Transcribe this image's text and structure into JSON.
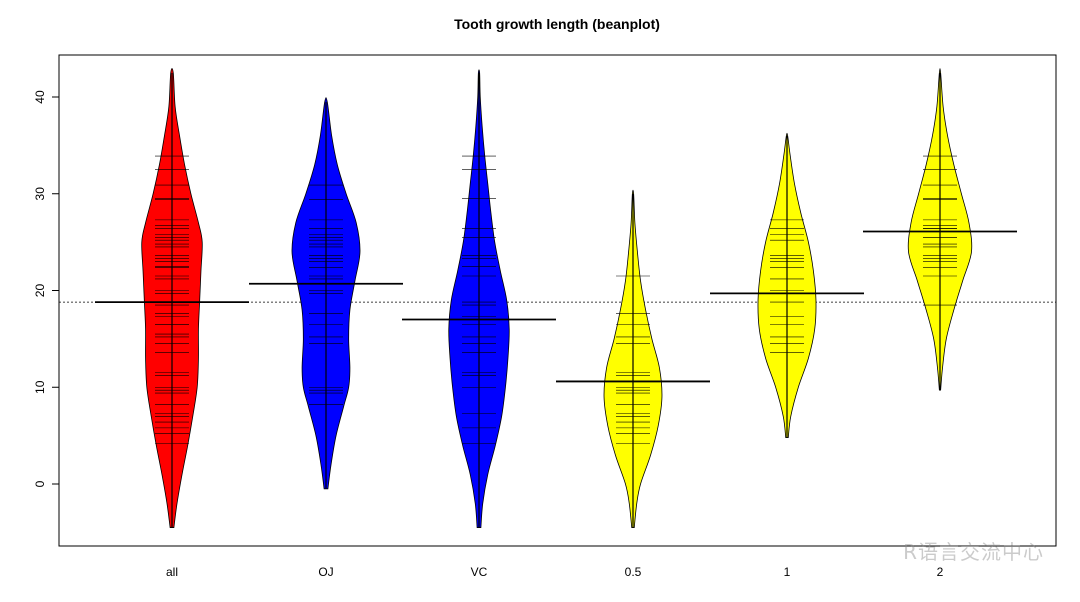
{
  "chart_data": {
    "type": "beanplot",
    "title": "Tooth growth length (beanplot)",
    "xlabel": "",
    "ylabel": "",
    "ylim": [
      -6,
      44
    ],
    "yticks": [
      0,
      10,
      20,
      30,
      40
    ],
    "overall_mean": 18.8,
    "categories": [
      "all",
      "OJ",
      "VC",
      "0.5",
      "1",
      "2"
    ],
    "beans": [
      {
        "name": "all",
        "color": "#ff0000",
        "mean": 18.8,
        "range": [
          -4.5,
          42.5
        ],
        "density": [
          [
            -4.5,
            0.03
          ],
          [
            -2,
            0.08
          ],
          [
            1,
            0.16
          ],
          [
            4,
            0.25
          ],
          [
            7,
            0.33
          ],
          [
            10,
            0.4
          ],
          [
            13,
            0.42
          ],
          [
            16,
            0.42
          ],
          [
            19,
            0.44
          ],
          [
            22,
            0.46
          ],
          [
            25,
            0.48
          ],
          [
            27,
            0.42
          ],
          [
            30,
            0.3
          ],
          [
            33,
            0.2
          ],
          [
            36,
            0.12
          ],
          [
            39,
            0.05
          ],
          [
            42.5,
            0.02
          ]
        ],
        "obs": [
          4.2,
          5.2,
          5.8,
          6.4,
          7.0,
          7.3,
          8.2,
          9.4,
          9.7,
          10.0,
          11.2,
          11.5,
          13.6,
          14.5,
          15.2,
          15.5,
          16.5,
          16.5,
          17.3,
          17.6,
          18.5,
          18.8,
          19.7,
          20.0,
          21.2,
          21.5,
          22.4,
          22.5,
          23.0,
          23.3,
          23.6,
          24.5,
          24.8,
          25.2,
          25.5,
          25.8,
          26.4,
          26.7,
          27.3,
          29.4,
          29.5,
          30.9,
          32.5,
          33.9
        ]
      },
      {
        "name": "OJ",
        "color": "#0000ff",
        "mean": 20.7,
        "range": [
          -0.5,
          39.5
        ],
        "density": [
          [
            -0.5,
            0.03
          ],
          [
            2,
            0.08
          ],
          [
            5,
            0.16
          ],
          [
            8,
            0.28
          ],
          [
            10,
            0.36
          ],
          [
            12,
            0.38
          ],
          [
            15,
            0.36
          ],
          [
            18,
            0.38
          ],
          [
            21,
            0.46
          ],
          [
            24,
            0.54
          ],
          [
            27,
            0.48
          ],
          [
            30,
            0.32
          ],
          [
            33,
            0.18
          ],
          [
            36,
            0.09
          ],
          [
            39.5,
            0.02
          ]
        ],
        "obs": [
          8.2,
          9.4,
          9.7,
          10.0,
          14.5,
          15.2,
          16.5,
          17.6,
          19.7,
          20.0,
          21.2,
          21.5,
          22.4,
          23.0,
          23.3,
          23.6,
          24.5,
          24.8,
          25.2,
          25.5,
          25.8,
          26.4,
          27.3,
          29.4,
          30.9
        ]
      },
      {
        "name": "VC",
        "color": "#0000ff",
        "mean": 17.0,
        "range": [
          -4.5,
          42.5
        ],
        "density": [
          [
            -4.5,
            0.03
          ],
          [
            -2,
            0.06
          ],
          [
            1,
            0.14
          ],
          [
            4,
            0.26
          ],
          [
            7,
            0.36
          ],
          [
            10,
            0.42
          ],
          [
            13,
            0.46
          ],
          [
            16,
            0.48
          ],
          [
            19,
            0.44
          ],
          [
            22,
            0.34
          ],
          [
            25,
            0.25
          ],
          [
            28,
            0.19
          ],
          [
            31,
            0.14
          ],
          [
            34,
            0.09
          ],
          [
            37,
            0.05
          ],
          [
            40,
            0.02
          ],
          [
            42.5,
            0.01
          ]
        ],
        "obs": [
          4.2,
          5.8,
          7.3,
          10.0,
          11.2,
          11.5,
          13.6,
          14.5,
          15.2,
          16.5,
          17.3,
          18.5,
          18.8,
          21.5,
          22.5,
          23.3,
          23.6,
          25.5,
          26.4,
          29.5,
          32.5,
          33.9
        ]
      },
      {
        "name": "0.5",
        "color": "#ffff00",
        "mean": 10.6,
        "range": [
          -4.5,
          30
        ],
        "density": [
          [
            -4.5,
            0.02
          ],
          [
            -2,
            0.06
          ],
          [
            0,
            0.12
          ],
          [
            3,
            0.28
          ],
          [
            6,
            0.4
          ],
          [
            9,
            0.46
          ],
          [
            12,
            0.42
          ],
          [
            15,
            0.3
          ],
          [
            18,
            0.2
          ],
          [
            21,
            0.12
          ],
          [
            24,
            0.07
          ],
          [
            27,
            0.03
          ],
          [
            30,
            0.01
          ]
        ],
        "obs": [
          4.2,
          5.2,
          5.8,
          6.4,
          7.0,
          7.3,
          8.2,
          9.4,
          9.7,
          10.0,
          10.0,
          11.2,
          11.5,
          14.5,
          15.2,
          16.5,
          17.6,
          21.5
        ]
      },
      {
        "name": "1",
        "color": "#ffff00",
        "mean": 19.7,
        "range": [
          4.8,
          36
        ],
        "density": [
          [
            4.8,
            0.02
          ],
          [
            7,
            0.06
          ],
          [
            10,
            0.18
          ],
          [
            13,
            0.34
          ],
          [
            16,
            0.44
          ],
          [
            19,
            0.46
          ],
          [
            22,
            0.42
          ],
          [
            25,
            0.34
          ],
          [
            28,
            0.22
          ],
          [
            31,
            0.12
          ],
          [
            34,
            0.05
          ],
          [
            36,
            0.01
          ]
        ],
        "obs": [
          13.6,
          14.5,
          15.2,
          16.5,
          17.3,
          18.8,
          19.7,
          20.0,
          21.2,
          22.4,
          23.0,
          23.3,
          23.6,
          25.2,
          25.8,
          26.4,
          27.3
        ]
      },
      {
        "name": "2",
        "color": "#ffff00",
        "mean": 26.1,
        "range": [
          9.7,
          42.5
        ],
        "density": [
          [
            9.7,
            0.01
          ],
          [
            12,
            0.04
          ],
          [
            15,
            0.1
          ],
          [
            18,
            0.22
          ],
          [
            21,
            0.36
          ],
          [
            24,
            0.5
          ],
          [
            27,
            0.46
          ],
          [
            30,
            0.34
          ],
          [
            33,
            0.22
          ],
          [
            36,
            0.12
          ],
          [
            39,
            0.05
          ],
          [
            42.5,
            0.01
          ]
        ],
        "obs": [
          18.5,
          21.5,
          22.4,
          23.0,
          23.3,
          23.6,
          24.5,
          24.8,
          25.5,
          25.5,
          26.4,
          26.4,
          26.7,
          27.3,
          29.4,
          29.5,
          30.9,
          32.5,
          33.9
        ]
      }
    ]
  },
  "watermark": "R语言交流中心"
}
